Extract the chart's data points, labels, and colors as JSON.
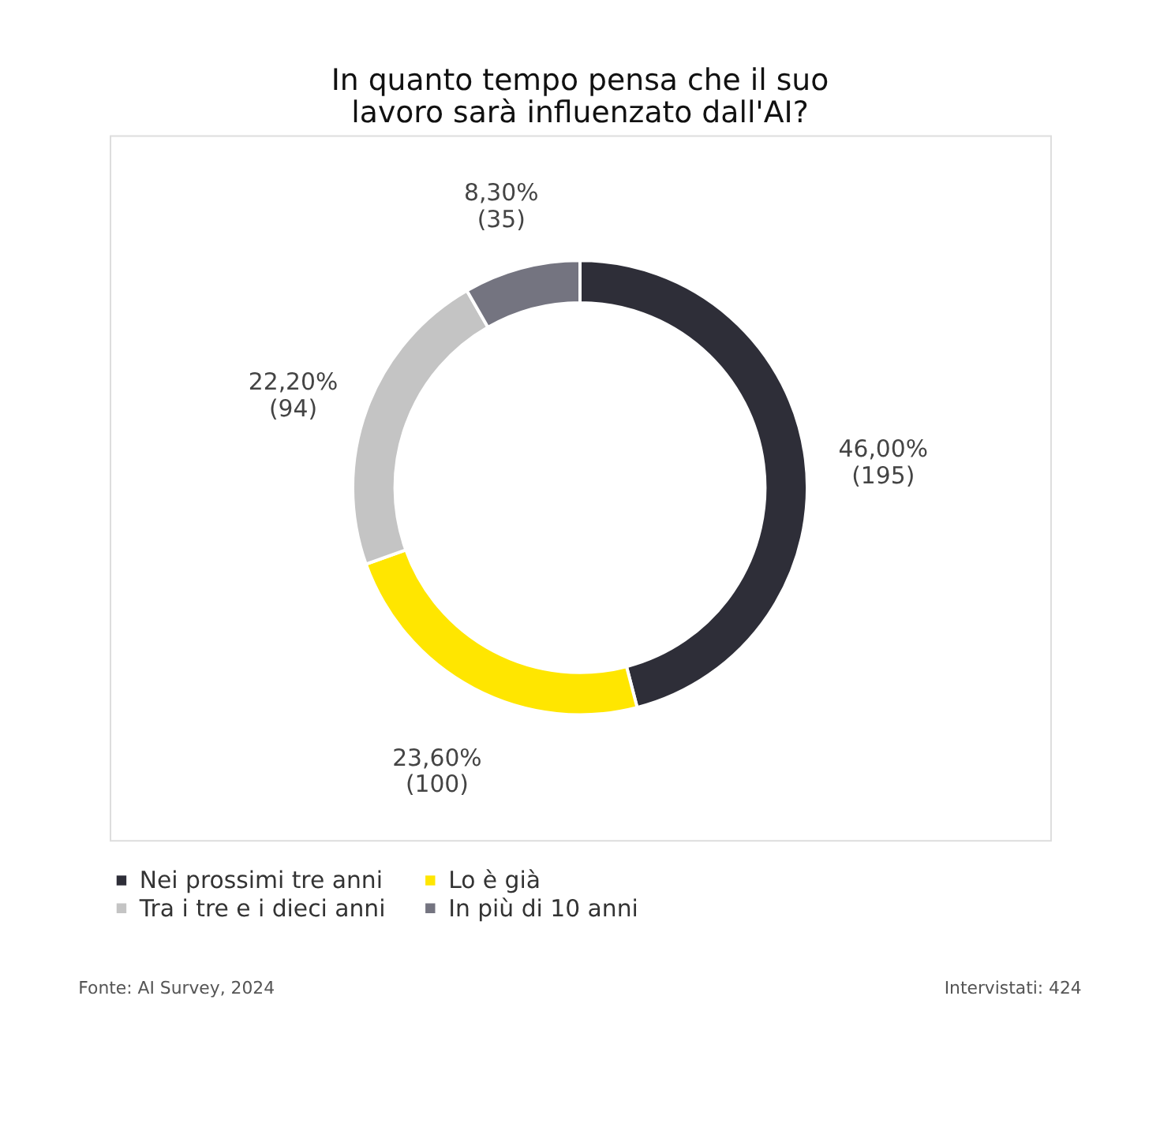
{
  "chart_data": {
    "type": "donut",
    "title": "In quanto tempo pensa che il suo\nlavoro sarà influenzato dall'AI?",
    "categories": [
      "Nei prossimi tre anni",
      "Lo è già",
      "Tra i tre e i dieci anni",
      "In più di 10 anni"
    ],
    "values": [
      46.0,
      23.6,
      22.2,
      8.3
    ],
    "colors": [
      "#2e2e38",
      "#ffe600",
      "#c4c4c4",
      "#747480"
    ],
    "value_labels": [
      "46,00%\n(195)",
      "23,60%\n(100)",
      "22,20%\n(94)",
      "8,30%\n(35)"
    ],
    "legend": "bottom",
    "annotations": [
      "Fonte: AI Survey, 2024",
      "Intervistati: 424"
    ]
  }
}
